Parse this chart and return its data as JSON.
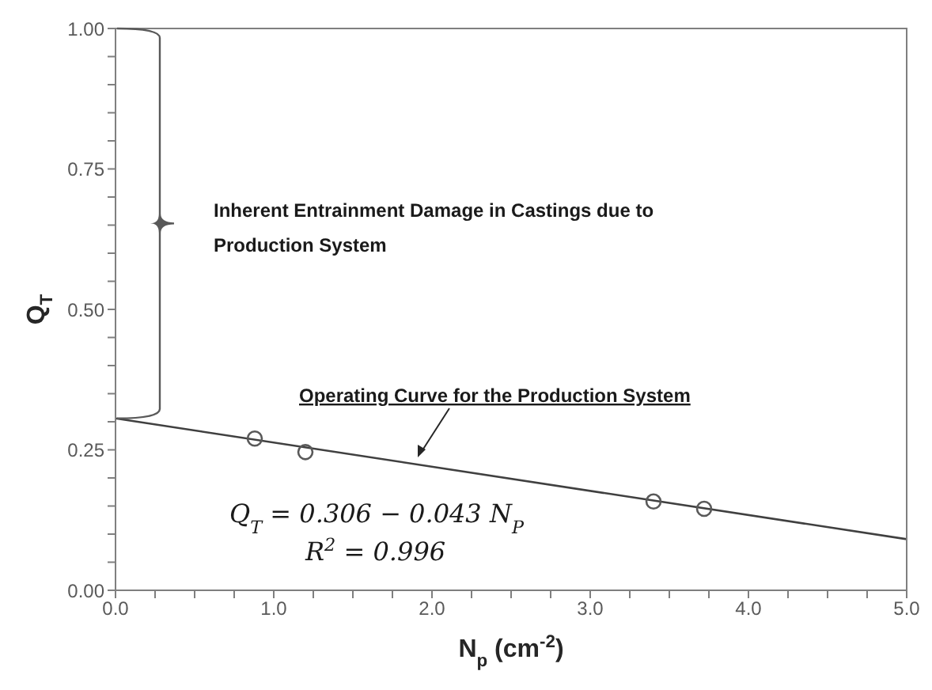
{
  "chart_data": {
    "type": "scatter",
    "xlabel": "N$_{p}$ (cm$^{-2}$)",
    "ylabel": "Q$_{T}$",
    "xlim": [
      0,
      5
    ],
    "ylim": [
      0,
      1
    ],
    "xticks": [
      {
        "value": 0,
        "label": "0.0"
      },
      {
        "value": 0.25,
        "label": null
      },
      {
        "value": 0.5,
        "label": null
      },
      {
        "value": 0.75,
        "label": null
      },
      {
        "value": 1,
        "label": "1.0"
      },
      {
        "value": 1.25,
        "label": null
      },
      {
        "value": 1.5,
        "label": null
      },
      {
        "value": 1.75,
        "label": null
      },
      {
        "value": 2,
        "label": "2.0"
      },
      {
        "value": 2.25,
        "label": null
      },
      {
        "value": 2.5,
        "label": null
      },
      {
        "value": 2.75,
        "label": null
      },
      {
        "value": 3,
        "label": "3.0"
      },
      {
        "value": 3.25,
        "label": null
      },
      {
        "value": 3.5,
        "label": null
      },
      {
        "value": 3.75,
        "label": null
      },
      {
        "value": 4,
        "label": "4.0"
      },
      {
        "value": 4.25,
        "label": null
      },
      {
        "value": 4.5,
        "label": null
      },
      {
        "value": 4.75,
        "label": null
      },
      {
        "value": 5,
        "label": "5.0"
      }
    ],
    "yticks": [
      {
        "value": 0,
        "label": "0.00"
      },
      {
        "value": 0.05,
        "label": null
      },
      {
        "value": 0.1,
        "label": null
      },
      {
        "value": 0.15,
        "label": null
      },
      {
        "value": 0.2,
        "label": null
      },
      {
        "value": 0.25,
        "label": "0.25"
      },
      {
        "value": 0.3,
        "label": null
      },
      {
        "value": 0.35,
        "label": null
      },
      {
        "value": 0.4,
        "label": null
      },
      {
        "value": 0.45,
        "label": null
      },
      {
        "value": 0.5,
        "label": "0.50"
      },
      {
        "value": 0.55,
        "label": null
      },
      {
        "value": 0.6,
        "label": null
      },
      {
        "value": 0.65,
        "label": null
      },
      {
        "value": 0.7,
        "label": null
      },
      {
        "value": 0.75,
        "label": "0.75"
      },
      {
        "value": 0.8,
        "label": null
      },
      {
        "value": 0.85,
        "label": null
      },
      {
        "value": 0.9,
        "label": null
      },
      {
        "value": 0.95,
        "label": null
      },
      {
        "value": 1,
        "label": "1.00"
      }
    ],
    "grid": false,
    "legend": false,
    "marker": "circle",
    "series": [
      {
        "type": "scatter",
        "color": "#595959",
        "x": [
          0.88,
          1.2,
          3.4,
          3.72
        ],
        "values": [
          0.27,
          0.246,
          0.158,
          0.145
        ]
      },
      {
        "type": "line",
        "color": "#404040",
        "marker": "none",
        "line_style": "solid",
        "x": [
          0,
          5
        ],
        "values": [
          0.306,
          0.091
        ]
      }
    ],
    "annotations": [
      "Inherent Entrainment Damage in Castings due to Production System",
      "Operating Curve for the Production System",
      "Q$_{T}$ = 0.306 − 0.043 N$_{P}$",
      "R$^{2}$ = 0.996"
    ]
  }
}
